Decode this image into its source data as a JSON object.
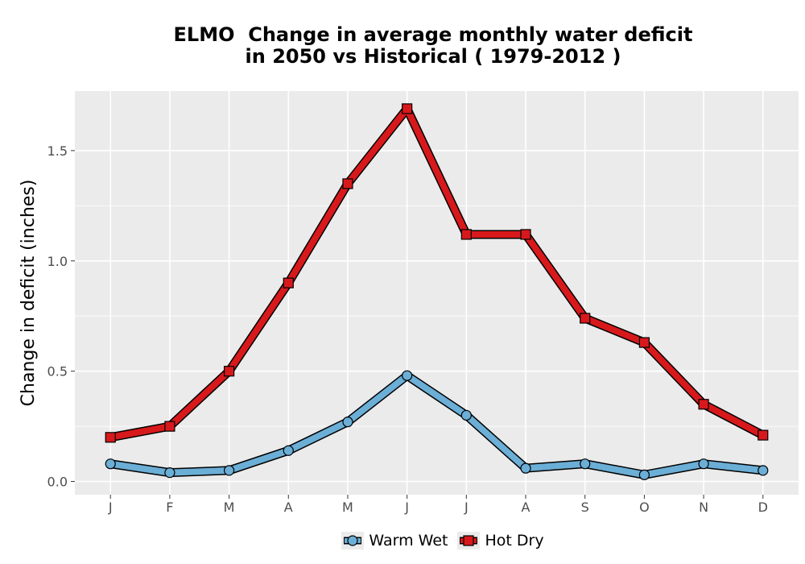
{
  "chart_data": {
    "type": "line",
    "title": [
      "ELMO  Change in average monthly water deficit",
      "in 2050 vs Historical ( 1979-2012 )"
    ],
    "xlabel": "",
    "ylabel": "Change in deficit (inches)",
    "categories": [
      "J",
      "F",
      "M",
      "A",
      "M",
      "J",
      "J",
      "A",
      "S",
      "O",
      "N",
      "D"
    ],
    "yticks": [
      0.0,
      0.5,
      1.0,
      1.5
    ],
    "ytick_labels": [
      "0.0",
      "0.5",
      "1.0",
      "1.5"
    ],
    "ylim": [
      -0.06,
      1.77
    ],
    "grid": true,
    "legend_position": "bottom",
    "series": [
      {
        "name": "Warm Wet",
        "values": [
          0.08,
          0.04,
          0.05,
          0.14,
          0.27,
          0.48,
          0.3,
          0.06,
          0.08,
          0.03,
          0.08,
          0.05
        ],
        "color": "#6baed6",
        "marker": "circle"
      },
      {
        "name": "Hot Dry",
        "values": [
          0.2,
          0.25,
          0.5,
          0.9,
          1.35,
          1.69,
          1.12,
          1.12,
          0.74,
          0.63,
          0.35,
          0.21
        ],
        "color": "#d7191c",
        "marker": "square"
      }
    ]
  }
}
